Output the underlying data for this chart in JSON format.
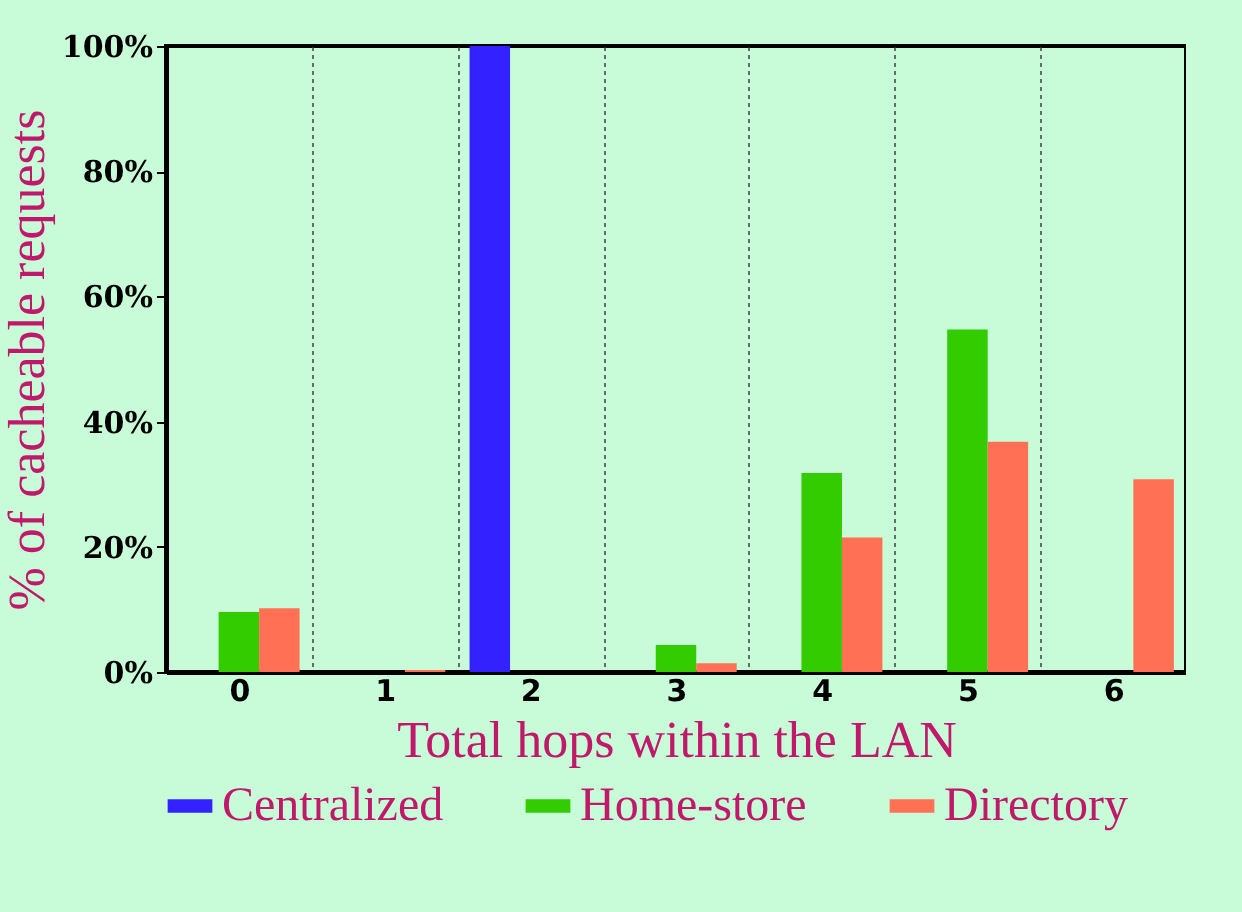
{
  "chart_data": {
    "type": "bar",
    "xlabel": "Total hops within the LAN",
    "ylabel": "% of cacheable requests",
    "categories": [
      "0",
      "1",
      "2",
      "3",
      "4",
      "5",
      "6"
    ],
    "series": [
      {
        "name": "Centralized",
        "color": "#3322ff",
        "values": [
          0,
          0,
          100,
          0,
          0,
          0,
          0
        ]
      },
      {
        "name": "Home-store",
        "color": "#33cc00",
        "values": [
          9.6,
          0,
          0,
          4.3,
          31.8,
          54.7,
          0
        ]
      },
      {
        "name": "Directory",
        "color": "#ff7055",
        "values": [
          10.2,
          0.3,
          0,
          1.4,
          21.5,
          36.8,
          30.8
        ]
      }
    ],
    "ylim": [
      0,
      100
    ],
    "yticks": [
      {
        "value": 0,
        "label": "0%"
      },
      {
        "value": 20,
        "label": "20%"
      },
      {
        "value": 40,
        "label": "40%"
      },
      {
        "value": 60,
        "label": "60%"
      },
      {
        "value": 80,
        "label": "80%"
      },
      {
        "value": 100,
        "label": "100%"
      }
    ],
    "grid": "x",
    "legend": "bottom"
  }
}
